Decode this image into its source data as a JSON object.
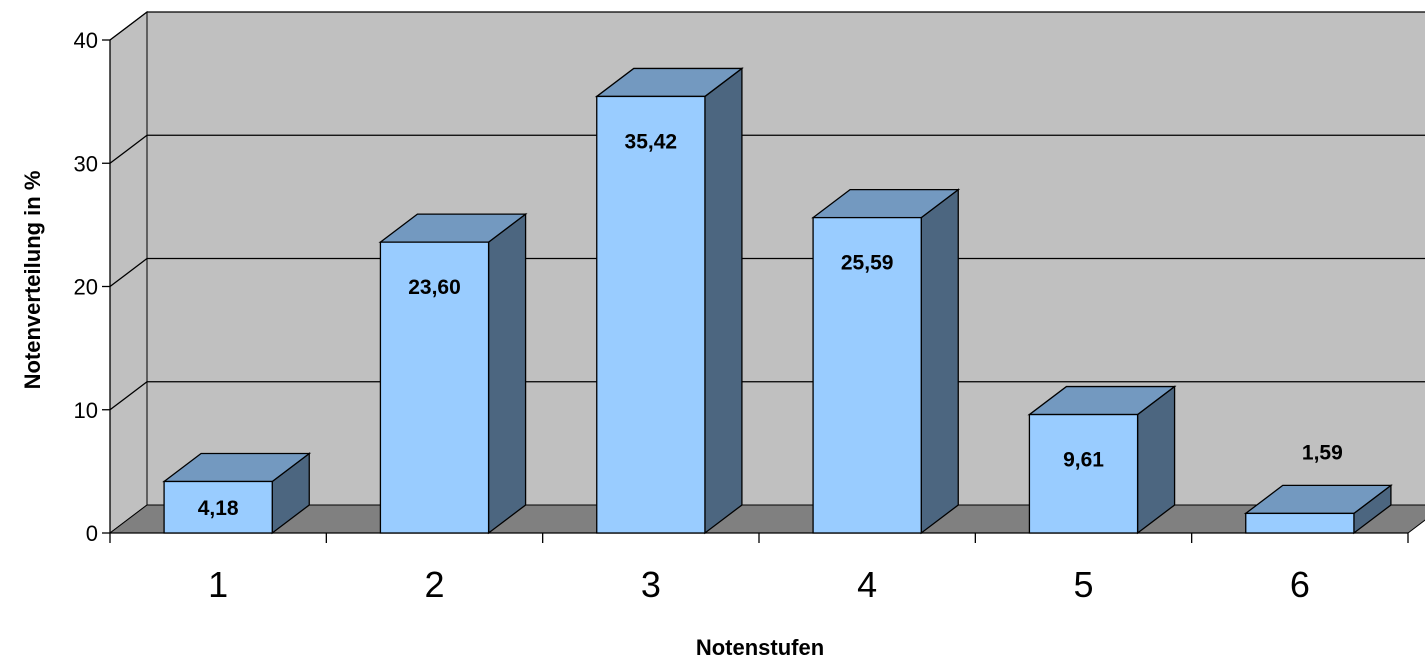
{
  "chart_data": {
    "type": "bar",
    "categories": [
      "1",
      "2",
      "3",
      "4",
      "5",
      "6"
    ],
    "values": [
      4.18,
      23.6,
      35.42,
      25.59,
      9.61,
      1.59
    ],
    "value_labels": [
      "4,18",
      "23,60",
      "35,42",
      "25,59",
      "9,61",
      "1,59"
    ],
    "xlabel": "Notenstufen",
    "ylabel": "Notenverteilung in %",
    "ylim": [
      0,
      40
    ],
    "yticks": [
      "0",
      "10",
      "20",
      "30",
      "40"
    ],
    "grid": true,
    "three_d": true,
    "colors": {
      "bar_front": "#99ccff",
      "bar_top": "#7399c0",
      "bar_side": "#4c6680",
      "wall": "#c0c0c0",
      "floor": "#808080",
      "gridline": "#000000"
    }
  }
}
